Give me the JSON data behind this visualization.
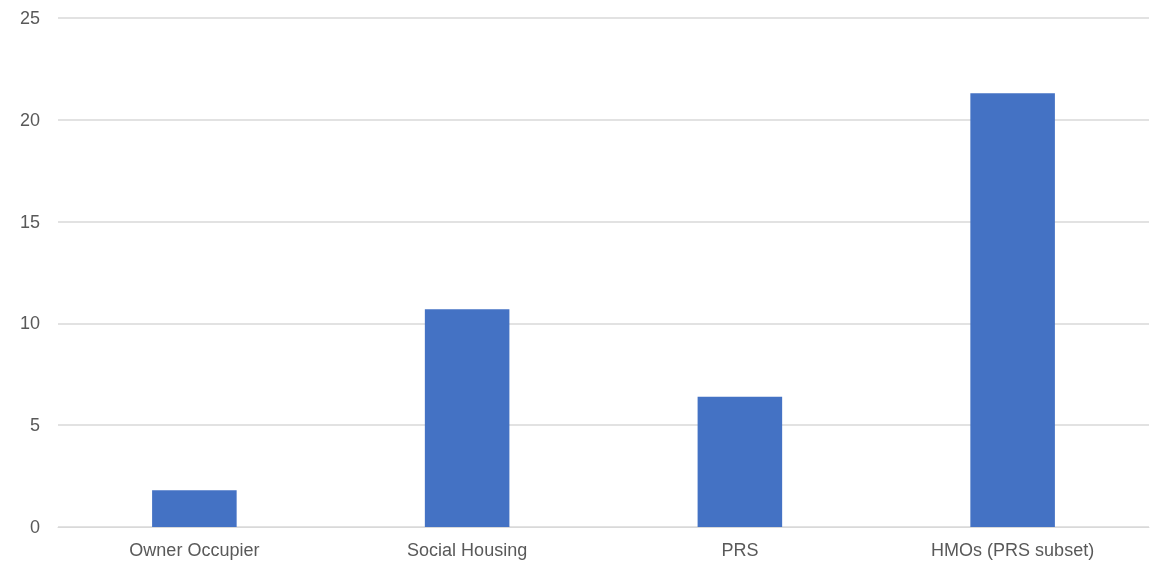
{
  "chart_data": {
    "type": "bar",
    "categories": [
      "Owner Occupier",
      "Social Housing",
      "PRS",
      "HMOs (PRS subset)"
    ],
    "values": [
      1.8,
      10.7,
      6.4,
      21.3
    ],
    "color": "#4472c4",
    "ylim": [
      0,
      25
    ],
    "yticks": [
      0,
      5,
      10,
      15,
      20,
      25
    ],
    "grid": "y"
  }
}
